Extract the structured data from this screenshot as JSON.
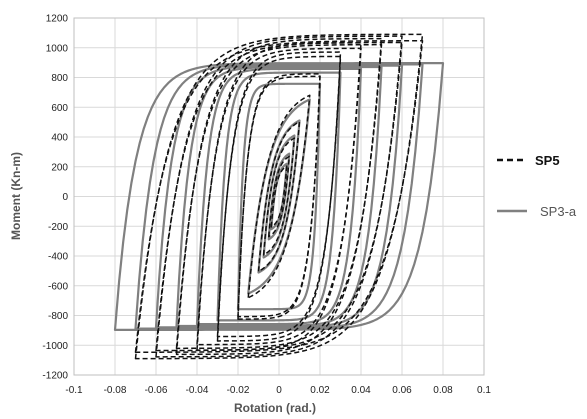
{
  "chart_data": {
    "type": "line",
    "xlabel": "Rotation (rad.)",
    "ylabel": "Moment (Kn-m)",
    "xlim": [
      -0.1,
      0.1
    ],
    "ylim": [
      -1200,
      1200
    ],
    "xticks": [
      "-0.1",
      "-0.08",
      "-0.06",
      "-0.04",
      "-0.02",
      "0",
      "0.02",
      "0.04",
      "0.06",
      "0.08",
      "0.1"
    ],
    "yticks": [
      "1200",
      "1000",
      "800",
      "600",
      "400",
      "200",
      "0",
      "-200",
      "-400",
      "-600",
      "-800",
      "-1000",
      "-1200"
    ],
    "grid": true,
    "legend_position": "right",
    "series": [
      {
        "name": "SP5",
        "style": "dashed",
        "color": "#111111",
        "amplitudes": [
          0.00375,
          0.005,
          0.0075,
          0.01,
          0.015,
          0.02,
          0.02,
          0.03,
          0.03,
          0.04,
          0.04,
          0.05,
          0.05,
          0.06,
          0.06,
          0.07,
          0.07
        ],
        "peak_moment_positive": 1020,
        "peak_moment_negative": -1010
      },
      {
        "name": "SP3-a",
        "style": "solid",
        "color": "#808080",
        "amplitudes": [
          0.00375,
          0.005,
          0.0075,
          0.01,
          0.015,
          0.02,
          0.03,
          0.04,
          0.05,
          0.06,
          0.07,
          0.08
        ],
        "peak_moment_positive": 830,
        "peak_moment_negative": -830
      }
    ]
  }
}
